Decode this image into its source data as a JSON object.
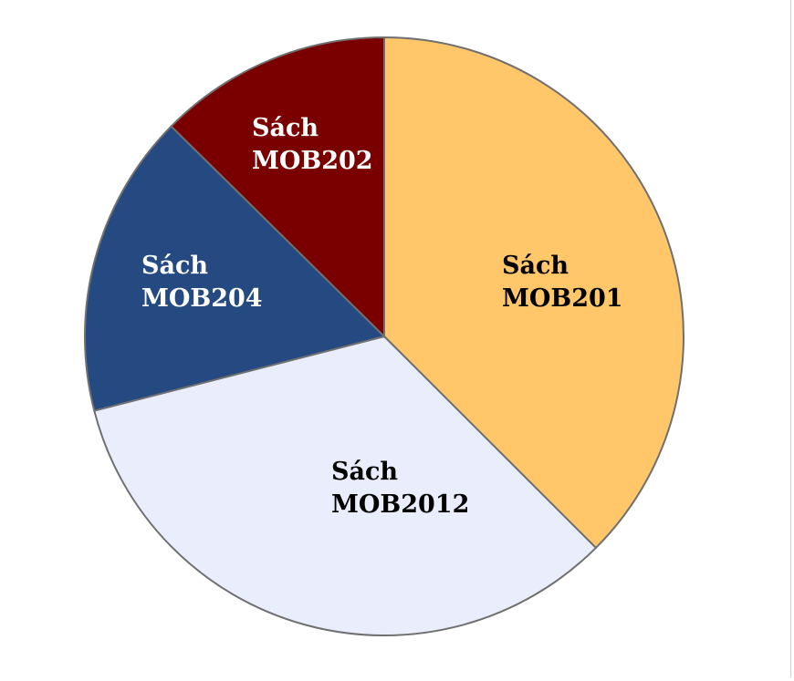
{
  "chart_data": {
    "type": "pie",
    "title": "",
    "categories": [
      "Sách MOB201",
      "Sách MOB2012",
      "Sách MOB204",
      "Sách MOB202"
    ],
    "labels": [
      [
        "Sách",
        "MOB201"
      ],
      [
        "Sách",
        "MOB2012"
      ],
      [
        "Sách",
        "MOB204"
      ],
      [
        "Sách",
        "MOB202"
      ]
    ],
    "values": [
      37.5,
      33.5,
      16.4,
      12.6
    ],
    "colors": [
      "#FFC76A",
      "#EAEEFC",
      "#254A82",
      "#7A0000"
    ],
    "label_colors": [
      "#000000",
      "#000000",
      "#ffffff",
      "#ffffff"
    ],
    "start_angle_deg": 0,
    "direction": "clockwise",
    "legend": "none",
    "slice_border_color": "#707070"
  }
}
